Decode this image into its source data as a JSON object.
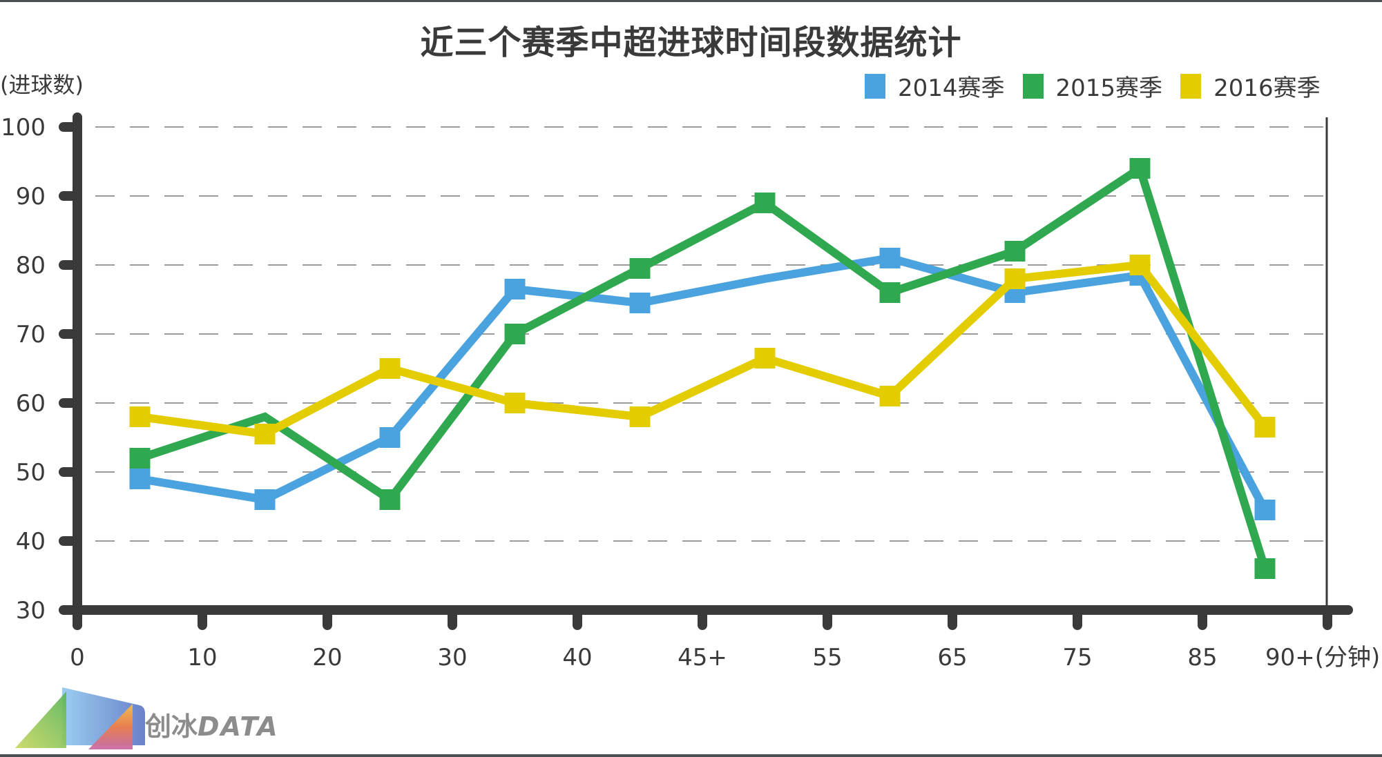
{
  "title": "近三个赛季中超进球时间段数据统计",
  "y_unit_label": "(进球数)",
  "x_unit_suffix": "(分钟)",
  "legend": [
    {
      "label": "2014赛季",
      "color": "#4aa3df"
    },
    {
      "label": "2015赛季",
      "color": "#30a84f"
    },
    {
      "label": "2016赛季",
      "color": "#e3cd00"
    }
  ],
  "watermark": {
    "cn": "创冰",
    "latin": "DATA"
  },
  "chart_data": {
    "type": "line",
    "title": "近三个赛季中超进球时间段数据统计",
    "xlabel": "(分钟)",
    "ylabel": "(进球数)",
    "x_tick_labels": [
      "0",
      "10",
      "20",
      "30",
      "40",
      "45+",
      "55",
      "65",
      "75",
      "85",
      "90+"
    ],
    "categories": [
      "0-10",
      "10-20",
      "20-30",
      "30-40",
      "40-45+",
      "45+-55",
      "55-65",
      "65-75",
      "75-85",
      "85-90+"
    ],
    "y_ticks": [
      30,
      40,
      50,
      60,
      70,
      80,
      90,
      100
    ],
    "ylim": [
      30,
      100
    ],
    "grid": true,
    "legend_position": "top-right",
    "series": [
      {
        "name": "2014赛季",
        "color": "#4aa3df",
        "values": [
          49,
          46,
          55,
          76.5,
          74.5,
          78,
          81,
          76,
          78.5,
          44.5
        ],
        "markers": [
          true,
          true,
          true,
          true,
          true,
          false,
          true,
          true,
          true,
          true
        ]
      },
      {
        "name": "2015赛季",
        "color": "#30a84f",
        "values": [
          52,
          58,
          46,
          70,
          79.5,
          89,
          76,
          82,
          94,
          36
        ],
        "markers": [
          true,
          false,
          true,
          true,
          true,
          true,
          true,
          true,
          true,
          true
        ]
      },
      {
        "name": "2016赛季",
        "color": "#e3cd00",
        "values": [
          58,
          55.5,
          65,
          60,
          58,
          66.5,
          61,
          78,
          80,
          56.5
        ],
        "markers": [
          true,
          true,
          true,
          true,
          true,
          true,
          true,
          true,
          true,
          true
        ]
      }
    ]
  }
}
